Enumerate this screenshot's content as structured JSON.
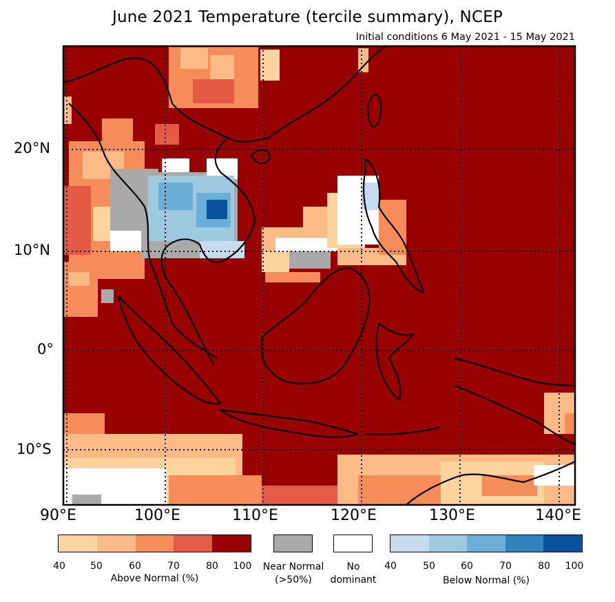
{
  "header": {
    "title": "June 2021 Temperature (tercile summary), NCEP",
    "subtitle": "Initial conditions 6 May 2021 - 15 May 2021"
  },
  "axes": {
    "lat_labels": [
      "20°N",
      "10°N",
      "0°",
      "10°S"
    ],
    "lon_labels": [
      "90°E",
      "100°E",
      "110°E",
      "120°E",
      "130°E",
      "140°E"
    ],
    "lon_range": [
      90,
      141
    ],
    "lat_range": [
      -15.5,
      30
    ]
  },
  "colors": {
    "above": [
      "#fdd49e",
      "#fcba86",
      "#f58c5a",
      "#e45a44",
      "#990000"
    ],
    "below": [
      "#c6dbef",
      "#9ecae1",
      "#6baed6",
      "#3182bd",
      "#08519c"
    ],
    "near_normal": "#a9a9a9",
    "no_dominant": "#ffffff",
    "coast": "#000000"
  },
  "legend": {
    "above_ticks": [
      "40",
      "50",
      "60",
      "70",
      "80",
      "100"
    ],
    "above_label": "Above Normal (%)",
    "near_label_1": "Near Normal",
    "near_label_2": "(>50%)",
    "nodom_label_1": "No",
    "nodom_label_2": "dominant",
    "below_ticks": [
      "40",
      "50",
      "60",
      "70",
      "80",
      "100"
    ],
    "below_label": "Below Normal (%)"
  }
}
